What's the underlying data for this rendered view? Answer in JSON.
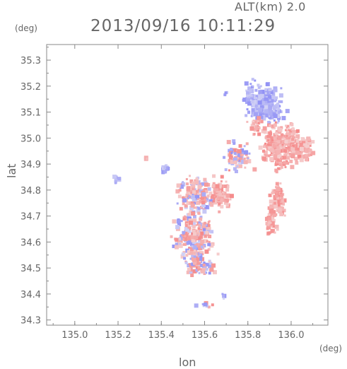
{
  "header": {
    "altitude": "ALT(km) 2.0",
    "timestamp": "2013/09/16 10:11:29"
  },
  "chart_data": {
    "type": "heatmap",
    "title": "2013/09/16 10:11:29",
    "xlabel": "lon",
    "ylabel": "lat",
    "x_unit": "(deg)",
    "y_unit": "(deg)",
    "xlim": [
      134.87,
      136.17
    ],
    "ylim": [
      34.28,
      35.36
    ],
    "xticks": [
      "135.0",
      "135.2",
      "135.4",
      "135.6",
      "135.8",
      "136.0"
    ],
    "xtick_values": [
      135.0,
      135.2,
      135.4,
      135.6,
      135.8,
      136.0
    ],
    "yticks": [
      "34.3",
      "34.4",
      "34.5",
      "34.6",
      "34.7",
      "34.8",
      "34.9",
      "35.0",
      "35.1",
      "35.2",
      "35.3"
    ],
    "ytick_values": [
      34.3,
      34.4,
      34.5,
      34.6,
      34.7,
      34.8,
      34.9,
      35.0,
      35.1,
      35.2,
      35.3
    ],
    "grid": false,
    "colors": {
      "positive": "#f08080",
      "negative": "#8c8cf0",
      "axis": "#888888"
    },
    "clusters": [
      {
        "lon": 135.88,
        "lat": 35.13,
        "rlon": 0.07,
        "rlat": 0.06,
        "sign": -1,
        "n": 260
      },
      {
        "lon": 135.95,
        "lat": 34.97,
        "rlon": 0.07,
        "rlat": 0.07,
        "sign": 1,
        "n": 300
      },
      {
        "lon": 136.06,
        "lat": 34.96,
        "rlon": 0.04,
        "rlat": 0.04,
        "sign": 1,
        "n": 90
      },
      {
        "lon": 135.84,
        "lat": 35.05,
        "rlon": 0.03,
        "rlat": 0.03,
        "sign": 1,
        "n": 40
      },
      {
        "lon": 135.94,
        "lat": 34.76,
        "rlon": 0.03,
        "rlat": 0.05,
        "sign": 1,
        "n": 90
      },
      {
        "lon": 135.91,
        "lat": 34.68,
        "rlon": 0.02,
        "rlat": 0.05,
        "sign": 1,
        "n": 70
      },
      {
        "lon": 135.67,
        "lat": 34.78,
        "rlon": 0.05,
        "rlat": 0.05,
        "sign": 1,
        "n": 110
      },
      {
        "lon": 135.55,
        "lat": 34.78,
        "rlon": 0.07,
        "rlat": 0.07,
        "sign": 0,
        "n": 150
      },
      {
        "lon": 135.55,
        "lat": 34.62,
        "rlon": 0.08,
        "rlat": 0.07,
        "sign": 0,
        "n": 220
      },
      {
        "lon": 135.58,
        "lat": 34.51,
        "rlon": 0.06,
        "rlat": 0.04,
        "sign": 0,
        "n": 90
      },
      {
        "lon": 135.76,
        "lat": 34.93,
        "rlon": 0.05,
        "rlat": 0.05,
        "sign": 0,
        "n": 80
      },
      {
        "lon": 135.42,
        "lat": 34.88,
        "rlon": 0.015,
        "rlat": 0.015,
        "sign": -1,
        "n": 18
      },
      {
        "lon": 135.19,
        "lat": 34.84,
        "rlon": 0.015,
        "rlat": 0.015,
        "sign": -1,
        "n": 8
      },
      {
        "lon": 135.33,
        "lat": 34.92,
        "rlon": 0.004,
        "rlat": 0.004,
        "sign": 1,
        "n": 4
      },
      {
        "lon": 135.69,
        "lat": 34.39,
        "rlon": 0.01,
        "rlat": 0.01,
        "sign": -1,
        "n": 5
      },
      {
        "lon": 135.59,
        "lat": 34.36,
        "rlon": 0.05,
        "rlat": 0.01,
        "sign": 0,
        "n": 10
      },
      {
        "lon": 135.81,
        "lat": 35.17,
        "rlon": 0.02,
        "rlat": 0.04,
        "sign": -1,
        "n": 30
      },
      {
        "lon": 135.7,
        "lat": 35.17,
        "rlon": 0.01,
        "rlat": 0.01,
        "sign": -1,
        "n": 4
      }
    ]
  }
}
